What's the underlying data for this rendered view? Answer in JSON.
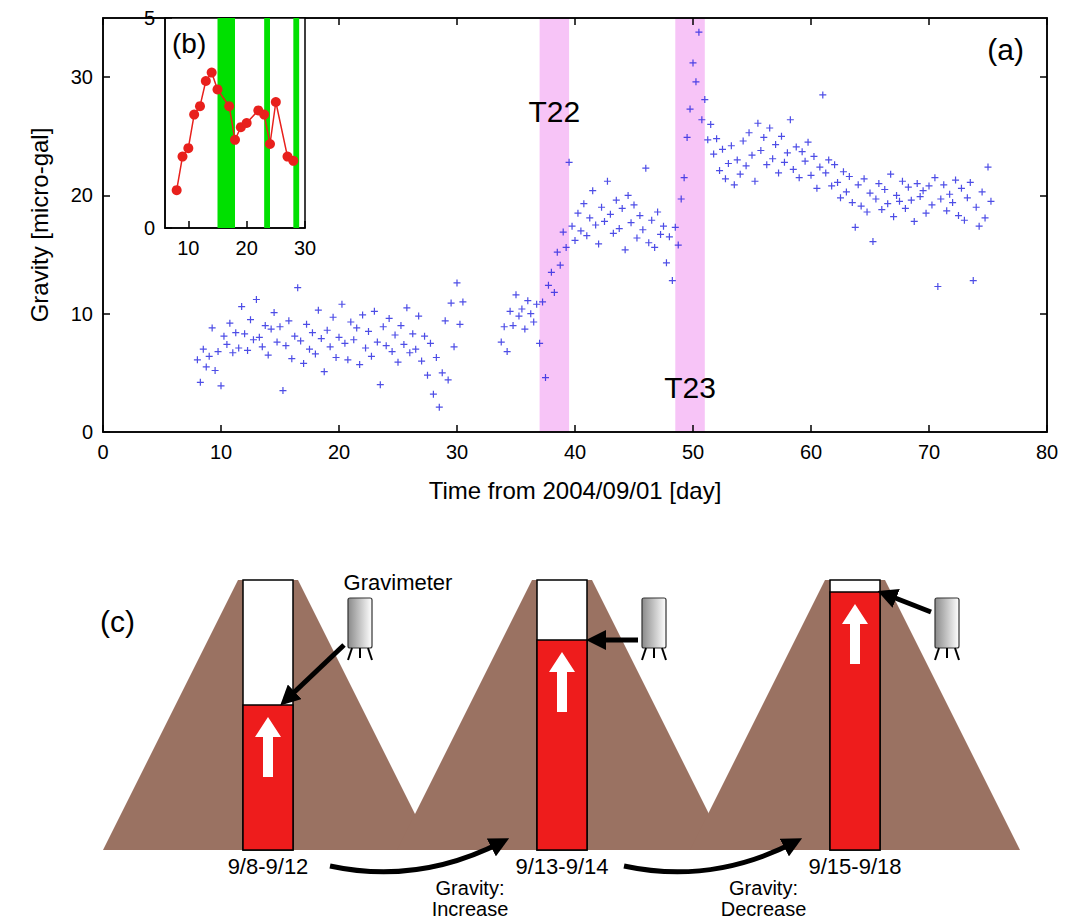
{
  "chart_data": [
    {
      "type": "scatter",
      "title": "(a)",
      "x_label": "Time from 2004/09/01 [day]",
      "y_label": "Gravity [micro-gal]",
      "color": "#2020e0",
      "marker": "plus",
      "xlim": [
        0,
        80
      ],
      "xticks": [
        0,
        10,
        20,
        30,
        40,
        50,
        60,
        70,
        80
      ],
      "ylim": [
        0,
        35
      ],
      "yticks": [
        0,
        10,
        20,
        30
      ],
      "bands": [
        {
          "x": [
            37,
            39.5
          ],
          "label": "T22",
          "color": "#f7c4f7"
        },
        {
          "x": [
            48.5,
            51
          ],
          "label": "T23",
          "color": "#f7c4f7"
        }
      ],
      "x": [
        8,
        8.25,
        8.5,
        8.75,
        9,
        9.25,
        9.5,
        9.75,
        10,
        10.25,
        10.5,
        10.75,
        11,
        11.25,
        11.5,
        11.75,
        12,
        12.25,
        12.5,
        12.75,
        13,
        13.25,
        13.5,
        13.75,
        14,
        14.25,
        14.5,
        14.75,
        15,
        15.25,
        15.5,
        15.75,
        16,
        16.25,
        16.5,
        16.75,
        17,
        17.25,
        17.5,
        17.75,
        18,
        18.25,
        18.5,
        18.75,
        19,
        19.25,
        19.5,
        19.75,
        20,
        20.25,
        20.5,
        20.75,
        21,
        21.25,
        21.5,
        21.75,
        22,
        22.25,
        22.5,
        22.75,
        23,
        23.25,
        23.5,
        23.75,
        24,
        24.25,
        24.5,
        24.75,
        25,
        25.25,
        25.5,
        25.75,
        26,
        26.25,
        26.5,
        26.75,
        27,
        27.25,
        27.5,
        27.75,
        28,
        28.25,
        28.5,
        28.75,
        29,
        29.25,
        29.5,
        29.75,
        30,
        30.25,
        30.5,
        33.75,
        34,
        34.25,
        34.5,
        34.75,
        35,
        35.25,
        35.5,
        35.75,
        36,
        36.25,
        36.5,
        36.75,
        37,
        37.25,
        37.5,
        37.75,
        38,
        38.25,
        38.5,
        38.75,
        39,
        39.25,
        39.5,
        39.75,
        40,
        40.25,
        40.5,
        40.75,
        41,
        41.25,
        41.5,
        41.75,
        42,
        42.25,
        42.5,
        42.75,
        43,
        43.25,
        43.5,
        43.75,
        44,
        44.25,
        44.5,
        44.75,
        45,
        45.25,
        45.5,
        45.75,
        46,
        46.25,
        46.5,
        46.75,
        47,
        47.25,
        47.5,
        47.75,
        48,
        48.25,
        48.5,
        48.75,
        49,
        49.25,
        49.5,
        49.75,
        50,
        50.25,
        50.5,
        50.75,
        51,
        51.25,
        51.5,
        51.75,
        52,
        52.25,
        52.5,
        52.75,
        53,
        53.25,
        53.5,
        53.75,
        54,
        54.25,
        54.5,
        54.75,
        55,
        55.25,
        55.5,
        55.75,
        56,
        56.25,
        56.5,
        56.75,
        57,
        57.25,
        57.5,
        57.75,
        58,
        58.25,
        58.5,
        58.75,
        59,
        59.25,
        59.5,
        59.75,
        60,
        60.25,
        60.5,
        60.75,
        61,
        61.25,
        61.5,
        61.75,
        62,
        62.25,
        62.5,
        62.75,
        63,
        63.25,
        63.5,
        63.75,
        64,
        64.25,
        64.5,
        64.75,
        65,
        65.25,
        65.5,
        65.75,
        66,
        66.25,
        66.5,
        66.75,
        67,
        67.25,
        67.5,
        67.75,
        68,
        68.25,
        68.5,
        68.75,
        69,
        69.25,
        69.5,
        69.75,
        70,
        70.25,
        70.5,
        70.75,
        71,
        71.25,
        71.5,
        71.75,
        72,
        72.25,
        72.5,
        72.75,
        73,
        73.25,
        73.5,
        73.75,
        74,
        74.25,
        74.5,
        74.75,
        75,
        75.25
      ],
      "values": [
        6.1,
        4.2,
        7.0,
        5.5,
        6.4,
        8.8,
        5.2,
        6.8,
        3.9,
        8.1,
        7.4,
        9.2,
        6.7,
        8.4,
        7.1,
        10.6,
        8.3,
        6.9,
        9.5,
        7.8,
        11.2,
        8.0,
        7.2,
        9.0,
        6.5,
        8.7,
        10.1,
        7.6,
        8.9,
        3.5,
        7.3,
        9.4,
        6.2,
        8.1,
        12.2,
        7.7,
        5.8,
        9.1,
        7.0,
        8.4,
        6.6,
        10.3,
        7.9,
        5.1,
        8.6,
        7.2,
        9.7,
        6.3,
        8.0,
        10.8,
        7.5,
        6.1,
        9.3,
        7.8,
        8.8,
        5.7,
        9.9,
        7.1,
        8.5,
        6.4,
        10.2,
        7.6,
        4.0,
        8.9,
        7.3,
        9.6,
        6.8,
        8.2,
        5.9,
        9.0,
        7.4,
        10.5,
        6.7,
        8.3,
        7.0,
        9.8,
        6.0,
        8.1,
        4.8,
        7.5,
        3.2,
        6.3,
        2.1,
        5.0,
        9.4,
        4.4,
        10.9,
        7.2,
        12.6,
        9.1,
        11.0,
        7.6,
        8.9,
        6.8,
        10.2,
        9.0,
        11.6,
        9.8,
        10.4,
        8.7,
        11.1,
        10.0,
        9.3,
        10.8,
        7.5,
        11.0,
        4.6,
        12.4,
        13.5,
        11.8,
        15.2,
        14.1,
        16.9,
        15.6,
        22.8,
        17.4,
        16.2,
        18.5,
        17.0,
        19.3,
        16.6,
        18.1,
        20.4,
        17.5,
        15.9,
        19.0,
        17.8,
        21.2,
        18.4,
        16.8,
        19.6,
        17.2,
        18.9,
        15.4,
        20.0,
        17.7,
        19.2,
        16.4,
        18.3,
        17.1,
        22.3,
        16.0,
        17.9,
        15.6,
        18.6,
        16.7,
        17.4,
        14.3,
        16.5,
        12.8,
        17.3,
        15.8,
        19.7,
        21.5,
        24.9,
        27.3,
        31.2,
        29.6,
        33.8,
        26.4,
        28.1,
        24.7,
        26.0,
        23.5,
        24.8,
        22.1,
        23.9,
        21.4,
        22.7,
        24.2,
        20.9,
        23.0,
        21.8,
        24.6,
        22.5,
        25.3,
        23.4,
        21.2,
        26.1,
        23.8,
        24.9,
        22.6,
        25.7,
        23.1,
        24.3,
        21.9,
        25.0,
        22.8,
        23.6,
        26.4,
        22.2,
        24.1,
        21.5,
        23.7,
        22.9,
        24.5,
        21.7,
        23.3,
        20.6,
        22.4,
        28.5,
        21.9,
        23.0,
        20.8,
        22.6,
        21.1,
        19.8,
        22.0,
        20.3,
        21.6,
        19.4,
        17.3,
        20.9,
        19.1,
        21.4,
        18.6,
        20.2,
        16.1,
        19.7,
        21.0,
        18.8,
        20.5,
        19.3,
        21.8,
        18.2,
        20.0,
        19.5,
        21.2,
        18.9,
        20.7,
        19.6,
        17.8,
        21.0,
        19.9,
        20.4,
        18.5,
        20.8,
        19.2,
        21.5,
        12.3,
        19.7,
        20.9,
        18.7,
        20.1,
        19.4,
        21.3,
        18.3,
        20.6,
        17.9,
        19.8,
        21.1,
        12.8,
        19.0,
        17.4,
        20.3,
        18.1,
        22.4,
        19.5
      ]
    },
    {
      "type": "line",
      "title": "(b)",
      "color": "#e8201c",
      "marker": "circle",
      "xlim": [
        6,
        30
      ],
      "xticks": [
        10,
        20,
        30
      ],
      "ylim": [
        0,
        5
      ],
      "yticks": [
        0,
        5
      ],
      "bands": [
        {
          "x": [
            15,
            18
          ],
          "color": "#00e000"
        },
        {
          "x": [
            23,
            24
          ],
          "color": "#00e000"
        },
        {
          "x": [
            28,
            29
          ],
          "color": "#00e000"
        }
      ],
      "x": [
        8,
        9,
        10,
        11,
        12,
        13,
        14,
        15,
        17,
        18,
        19,
        20,
        22,
        23,
        24,
        25,
        27,
        28
      ],
      "values": [
        0.9,
        1.7,
        1.9,
        2.7,
        2.9,
        3.5,
        3.7,
        3.3,
        2.9,
        2.1,
        2.4,
        2.5,
        2.8,
        2.7,
        2.0,
        3.0,
        1.7,
        1.6
      ]
    }
  ],
  "diagram": {
    "title": "(c)",
    "instrument": "Gravimeter",
    "stages": [
      "9/8-9/12",
      "9/13-9/14",
      "9/15-9/18"
    ],
    "transitions": [
      [
        "Gravity:",
        "Increase"
      ],
      [
        "Gravity:",
        "Decrease"
      ]
    ]
  }
}
